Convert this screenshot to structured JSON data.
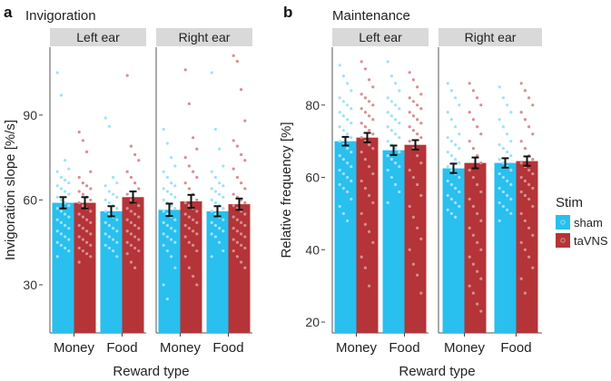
{
  "figure": {
    "legend": {
      "title": "Stim"
    }
  },
  "chart_data": [
    {
      "panel_letter": "a",
      "type": "bar",
      "title": "Invigoration",
      "ylabel": "Invigoration slope [%/s]",
      "xlabel": "Reward type",
      "ylim": [
        13,
        114
      ],
      "yticks": [
        30,
        60,
        90
      ],
      "facets": [
        "Left ear",
        "Right ear"
      ],
      "categories": [
        "Money",
        "Food"
      ],
      "series": [
        {
          "name": "sham",
          "color": "#29bfee",
          "values": [
            [
              59,
              56
            ],
            [
              56.5,
              56
            ]
          ],
          "errors": [
            [
              2,
              1.8
            ],
            [
              2.2,
              1.8
            ]
          ]
        },
        {
          "name": "taVNS",
          "color": "#b43438",
          "values": [
            [
              59,
              61
            ],
            [
              59.5,
              58.5
            ]
          ],
          "errors": [
            [
              2,
              2
            ],
            [
              2.3,
              2
            ]
          ]
        }
      ],
      "dots": [
        [
          [
            [
              105,
              97,
              74,
              71,
              70,
              68,
              67,
              66,
              65,
              64,
              63,
              62,
              61,
              60,
              59,
              58,
              57,
              56,
              55,
              54,
              53,
              52,
              51,
              50,
              49,
              48,
              47,
              46,
              45,
              44,
              43,
              42,
              40
            ],
            [
              89,
              86,
              68,
              66,
              65,
              63,
              62,
              61,
              60,
              59,
              58,
              57,
              56,
              55,
              54,
              53,
              52,
              51,
              50,
              49,
              48,
              47,
              46,
              45,
              44,
              43,
              42,
              40
            ]
          ],
          [
            [
              84,
              81,
              77,
              70,
              68,
              66,
              65,
              64,
              63,
              62,
              61,
              60,
              59,
              58,
              57,
              56,
              55,
              54,
              53,
              52,
              51,
              50,
              49,
              48,
              47,
              46,
              45,
              44,
              43,
              42,
              41,
              40,
              38
            ],
            [
              104,
              79,
              76,
              74,
              70,
              68,
              66,
              64,
              62,
              60,
              59,
              58,
              57,
              56,
              55,
              54,
              53,
              52,
              51,
              50,
              49,
              48,
              47,
              46,
              45,
              44,
              43,
              42,
              41,
              38,
              36
            ]
          ]
        ],
        [
          [
            [
              85,
              80,
              75,
              72,
              70,
              68,
              66,
              65,
              64,
              63,
              62,
              61,
              60,
              59,
              58,
              57,
              56,
              55,
              54,
              53,
              52,
              51,
              50,
              49,
              48,
              47,
              46,
              45,
              44,
              42,
              40,
              36,
              30,
              25
            ],
            [
              105,
              85,
              78,
              72,
              70,
              68,
              66,
              65,
              64,
              63,
              62,
              61,
              60,
              59,
              58,
              57,
              56,
              55,
              54,
              53,
              52,
              51,
              50,
              49,
              48,
              47,
              45,
              42,
              40
            ]
          ],
          [
            [
              106,
              94,
              82,
              78,
              75,
              72,
              70,
              68,
              66,
              64,
              62,
              60,
              59,
              58,
              57,
              56,
              55,
              54,
              53,
              52,
              51,
              50,
              49,
              48,
              47,
              45,
              44,
              42,
              40,
              36,
              33,
              30
            ],
            [
              111,
              109,
              99,
              88,
              81,
              79,
              76,
              74,
              71,
              68,
              66,
              64,
              62,
              61,
              60,
              59,
              58,
              57,
              56,
              55,
              54,
              53,
              52,
              51,
              50,
              49,
              48,
              47,
              46,
              45,
              44,
              43,
              42,
              40,
              38,
              36
            ]
          ]
        ]
      ]
    },
    {
      "panel_letter": "b",
      "type": "bar",
      "title": "Maintenance",
      "ylabel": "Relative frequency [%]",
      "xlabel": "Reward type",
      "ylim": [
        17,
        96
      ],
      "yticks": [
        20,
        40,
        60,
        80
      ],
      "facets": [
        "Left ear",
        "Right ear"
      ],
      "categories": [
        "Money",
        "Food"
      ],
      "series": [
        {
          "name": "sham",
          "color": "#29bfee",
          "values": [
            [
              70,
              67.5
            ],
            [
              62.5,
              64
            ]
          ],
          "errors": [
            [
              1.2,
              1.3
            ],
            [
              1.3,
              1.3
            ]
          ]
        },
        {
          "name": "taVNS",
          "color": "#b43438",
          "values": [
            [
              71,
              69
            ],
            [
              64,
              64.5
            ]
          ],
          "errors": [
            [
              1.3,
              1.3
            ],
            [
              1.5,
              1.3
            ]
          ]
        }
      ],
      "dots": [
        [
          [
            [
              91,
              88,
              86,
              84,
              82,
              81,
              80,
              79,
              78,
              77,
              76,
              75,
              74,
              73,
              72,
              71,
              70,
              69,
              68,
              67,
              66,
              65,
              64,
              63,
              62,
              61,
              60,
              59,
              58,
              57,
              56,
              54,
              52,
              50,
              48
            ],
            [
              92,
              88,
              86,
              84,
              82,
              81,
              80,
              79,
              78,
              77,
              76,
              75,
              74,
              73,
              72,
              71,
              70,
              69,
              68,
              67,
              66,
              65,
              64,
              63,
              62,
              60,
              58,
              56,
              53
            ]
          ],
          [
            [
              92,
              90,
              87,
              85,
              83,
              82,
              81,
              80,
              79,
              78,
              77,
              76,
              75,
              74,
              73,
              72,
              71,
              70,
              69,
              68,
              67,
              65,
              63,
              61,
              59,
              57,
              55,
              53,
              50,
              47,
              45,
              42,
              38,
              35,
              30
            ],
            [
              89,
              87,
              85,
              83,
              82,
              81,
              80,
              79,
              78,
              77,
              76,
              75,
              74,
              73,
              72,
              71,
              70,
              68,
              66,
              64,
              62,
              60,
              58,
              55,
              52,
              49,
              46,
              43,
              40,
              36,
              33,
              28
            ]
          ]
        ],
        [
          [
            [
              86,
              84,
              82,
              80,
              78,
              76,
              74,
              72,
              71,
              70,
              69,
              68,
              67,
              66,
              65,
              64,
              63,
              62,
              61,
              60,
              59,
              58,
              57,
              56,
              55,
              54,
              53,
              52,
              51,
              50,
              49
            ],
            [
              85,
              82,
              80,
              78,
              76,
              74,
              72,
              70,
              69,
              68,
              67,
              66,
              65,
              64,
              63,
              62,
              61,
              60,
              59,
              58,
              57,
              56,
              55,
              54,
              53,
              52,
              51,
              50,
              48
            ]
          ],
          [
            [
              86,
              84,
              82,
              80,
              78,
              76,
              74,
              72,
              70,
              68,
              66,
              64,
              62,
              60,
              58,
              56,
              54,
              52,
              50,
              48,
              46,
              44,
              42,
              40,
              38,
              36,
              34,
              32,
              30,
              28,
              25,
              23
            ],
            [
              86,
              84,
              82,
              80,
              78,
              76,
              74,
              72,
              70,
              68,
              66,
              65,
              64,
              63,
              62,
              61,
              60,
              59,
              58,
              57,
              56,
              55,
              54,
              52,
              50,
              48,
              46,
              44,
              42,
              40,
              38,
              35,
              32,
              28
            ]
          ]
        ]
      ]
    }
  ]
}
